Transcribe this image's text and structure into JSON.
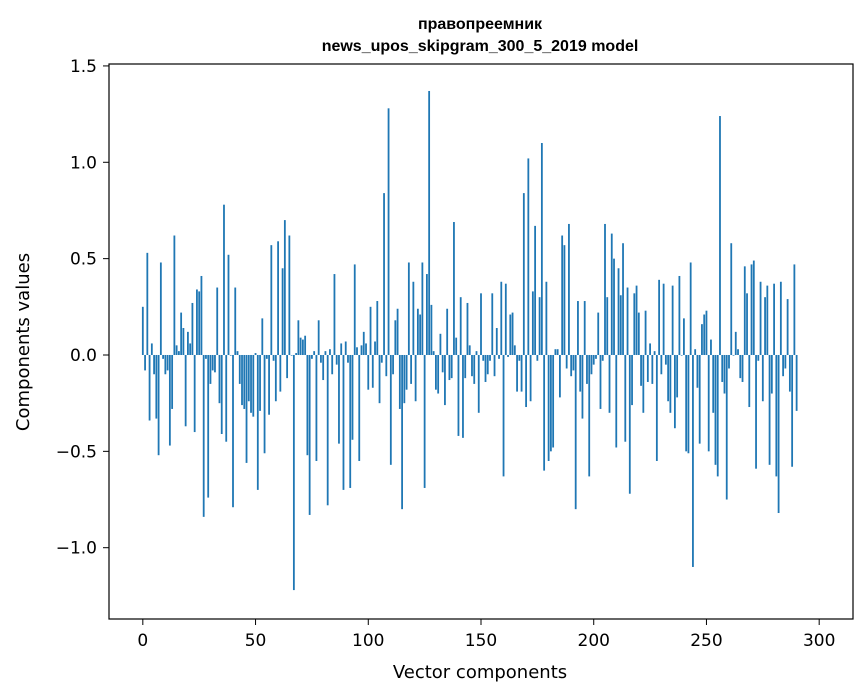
{
  "chart_data": {
    "type": "bar",
    "title_lines": [
      "правопреемник",
      "news_upos_skipgram_300_5_2019 model"
    ],
    "xlabel": "Vector components",
    "ylabel": "Components values",
    "xlim": [
      -15,
      315
    ],
    "ylim": [
      -1.37,
      1.51
    ],
    "xticks": [
      0,
      50,
      100,
      150,
      200,
      250,
      300
    ],
    "yticks": [
      -1.0,
      -0.5,
      0.0,
      0.5,
      1.0,
      1.5
    ],
    "xtick_labels": [
      "0",
      "50",
      "100",
      "150",
      "200",
      "250",
      "300"
    ],
    "ytick_labels": [
      "−1.0",
      "−0.5",
      "0.0",
      "0.5",
      "1.0",
      "1.5"
    ],
    "grid": false,
    "legend": "none",
    "bar_color": "#1f77b4",
    "values": [
      0.25,
      -0.08,
      0.53,
      -0.34,
      0.06,
      -0.1,
      -0.33,
      -0.52,
      0.48,
      -0.02,
      -0.1,
      -0.08,
      -0.47,
      -0.28,
      0.62,
      0.05,
      0.02,
      0.22,
      0.14,
      -0.37,
      0.12,
      0.06,
      0.27,
      -0.4,
      0.34,
      0.33,
      0.41,
      -0.84,
      -0.02,
      -0.74,
      -0.15,
      -0.08,
      -0.09,
      0.35,
      -0.25,
      -0.41,
      0.78,
      -0.45,
      0.52,
      0.0,
      -0.79,
      0.35,
      0.02,
      -0.15,
      -0.26,
      -0.28,
      -0.56,
      -0.24,
      -0.3,
      -0.32,
      0.01,
      -0.7,
      -0.29,
      0.19,
      -0.51,
      -0.02,
      -0.31,
      0.57,
      -0.03,
      -0.24,
      0.59,
      -0.19,
      0.45,
      0.7,
      -0.12,
      0.62,
      0.0,
      -1.22,
      0.01,
      0.18,
      0.09,
      0.08,
      0.1,
      -0.52,
      -0.83,
      -0.02,
      0.02,
      -0.55,
      0.18,
      -0.04,
      -0.13,
      0.02,
      -0.78,
      0.03,
      -0.1,
      0.42,
      -0.05,
      -0.46,
      0.06,
      -0.7,
      0.07,
      -0.04,
      -0.69,
      -0.44,
      0.47,
      0.04,
      -0.55,
      0.05,
      0.12,
      0.06,
      -0.18,
      0.25,
      -0.17,
      0.07,
      0.28,
      -0.25,
      -0.04,
      0.84,
      -0.11,
      1.28,
      -0.57,
      -0.1,
      0.18,
      0.24,
      -0.28,
      -0.8,
      -0.25,
      -0.18,
      0.48,
      -0.15,
      0.38,
      -0.24,
      0.24,
      0.21,
      0.48,
      -0.69,
      0.42,
      1.37,
      0.26,
      0.02,
      -0.18,
      -0.2,
      0.11,
      -0.09,
      -0.26,
      0.24,
      -0.13,
      -0.12,
      0.69,
      0.09,
      -0.42,
      0.3,
      -0.43,
      -0.12,
      0.27,
      0.05,
      -0.11,
      -0.15,
      0.02,
      -0.3,
      0.32,
      -0.03,
      -0.14,
      -0.1,
      -0.03,
      0.32,
      -0.11,
      0.14,
      -0.02,
      0.38,
      -0.63,
      0.37,
      -0.01,
      0.21,
      0.22,
      0.05,
      -0.19,
      -0.03,
      -0.19,
      0.84,
      -0.27,
      1.02,
      -0.24,
      0.33,
      0.67,
      -0.03,
      0.3,
      1.1,
      -0.6,
      0.38,
      -0.55,
      -0.5,
      -0.48,
      0.03,
      0.03,
      -0.22,
      0.62,
      0.57,
      -0.07,
      0.68,
      -0.11,
      -0.08,
      -0.8,
      0.28,
      -0.19,
      -0.33,
      0.28,
      -0.15,
      -0.63,
      -0.1,
      -0.05,
      -0.02,
      0.22,
      -0.28,
      -0.03,
      0.68,
      0.3,
      -0.3,
      0.63,
      0.5,
      -0.48,
      0.45,
      0.31,
      0.58,
      -0.45,
      0.35,
      -0.72,
      -0.26,
      0.32,
      0.36,
      0.22,
      -0.16,
      -0.3,
      0.23,
      -0.14,
      0.06,
      -0.15,
      0.02,
      -0.55,
      0.39,
      -0.1,
      0.37,
      -0.05,
      -0.24,
      -0.3,
      0.36,
      -0.38,
      -0.22,
      0.41,
      0.0,
      0.19,
      -0.5,
      -0.51,
      0.48,
      -1.1,
      0.03,
      -0.17,
      -0.46,
      0.16,
      0.21,
      0.23,
      -0.5,
      0.08,
      -0.3,
      -0.57,
      -0.63,
      1.24,
      -0.14,
      -0.2,
      -0.75,
      -0.07,
      0.58,
      0.0,
      0.12,
      0.03,
      -0.12,
      -0.14,
      0.46,
      0.32,
      -0.27,
      0.47,
      0.49,
      -0.59,
      -0.03,
      0.38,
      -0.24,
      0.3,
      0.36,
      -0.57,
      -0.2,
      0.37,
      -0.63,
      -0.82,
      0.38,
      -0.11,
      -0.07,
      0.29,
      -0.19,
      -0.58,
      0.47,
      -0.29
    ]
  }
}
